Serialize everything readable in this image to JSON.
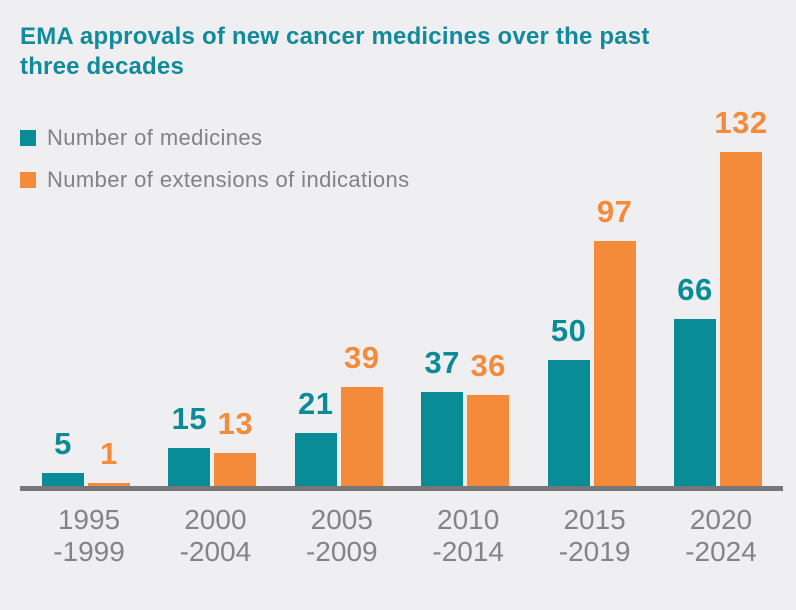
{
  "title": "EMA approvals of new cancer medicines over the past three decades",
  "colors": {
    "background": "#efeff1",
    "title_text": "#118a9b",
    "legend_text": "#818285",
    "axis_line": "#76777b",
    "axis_label_text": "#828487",
    "medicines_teal": "#0a8c96",
    "extensions_orange": "#f48b3a"
  },
  "chart_data": {
    "type": "bar",
    "title": "EMA approvals of new cancer medicines over the past three decades",
    "categories": [
      "1995\n-1999",
      "2000\n-2004",
      "2005\n-2009",
      "2010\n-2014",
      "2015\n-2019",
      "2020\n-2024"
    ],
    "series": [
      {
        "name": "Number of medicines",
        "color": "#0a8c96",
        "values": [
          5,
          15,
          21,
          37,
          50,
          66
        ]
      },
      {
        "name": "Number of extensions of indications",
        "color": "#f48b3a",
        "values": [
          1,
          13,
          39,
          36,
          97,
          132
        ]
      }
    ],
    "value_labels": true,
    "xlabel": "",
    "ylabel": "",
    "ylim": [
      0,
      140
    ],
    "grid": false,
    "y_axis_visible": false,
    "legend_position": "top-left"
  }
}
